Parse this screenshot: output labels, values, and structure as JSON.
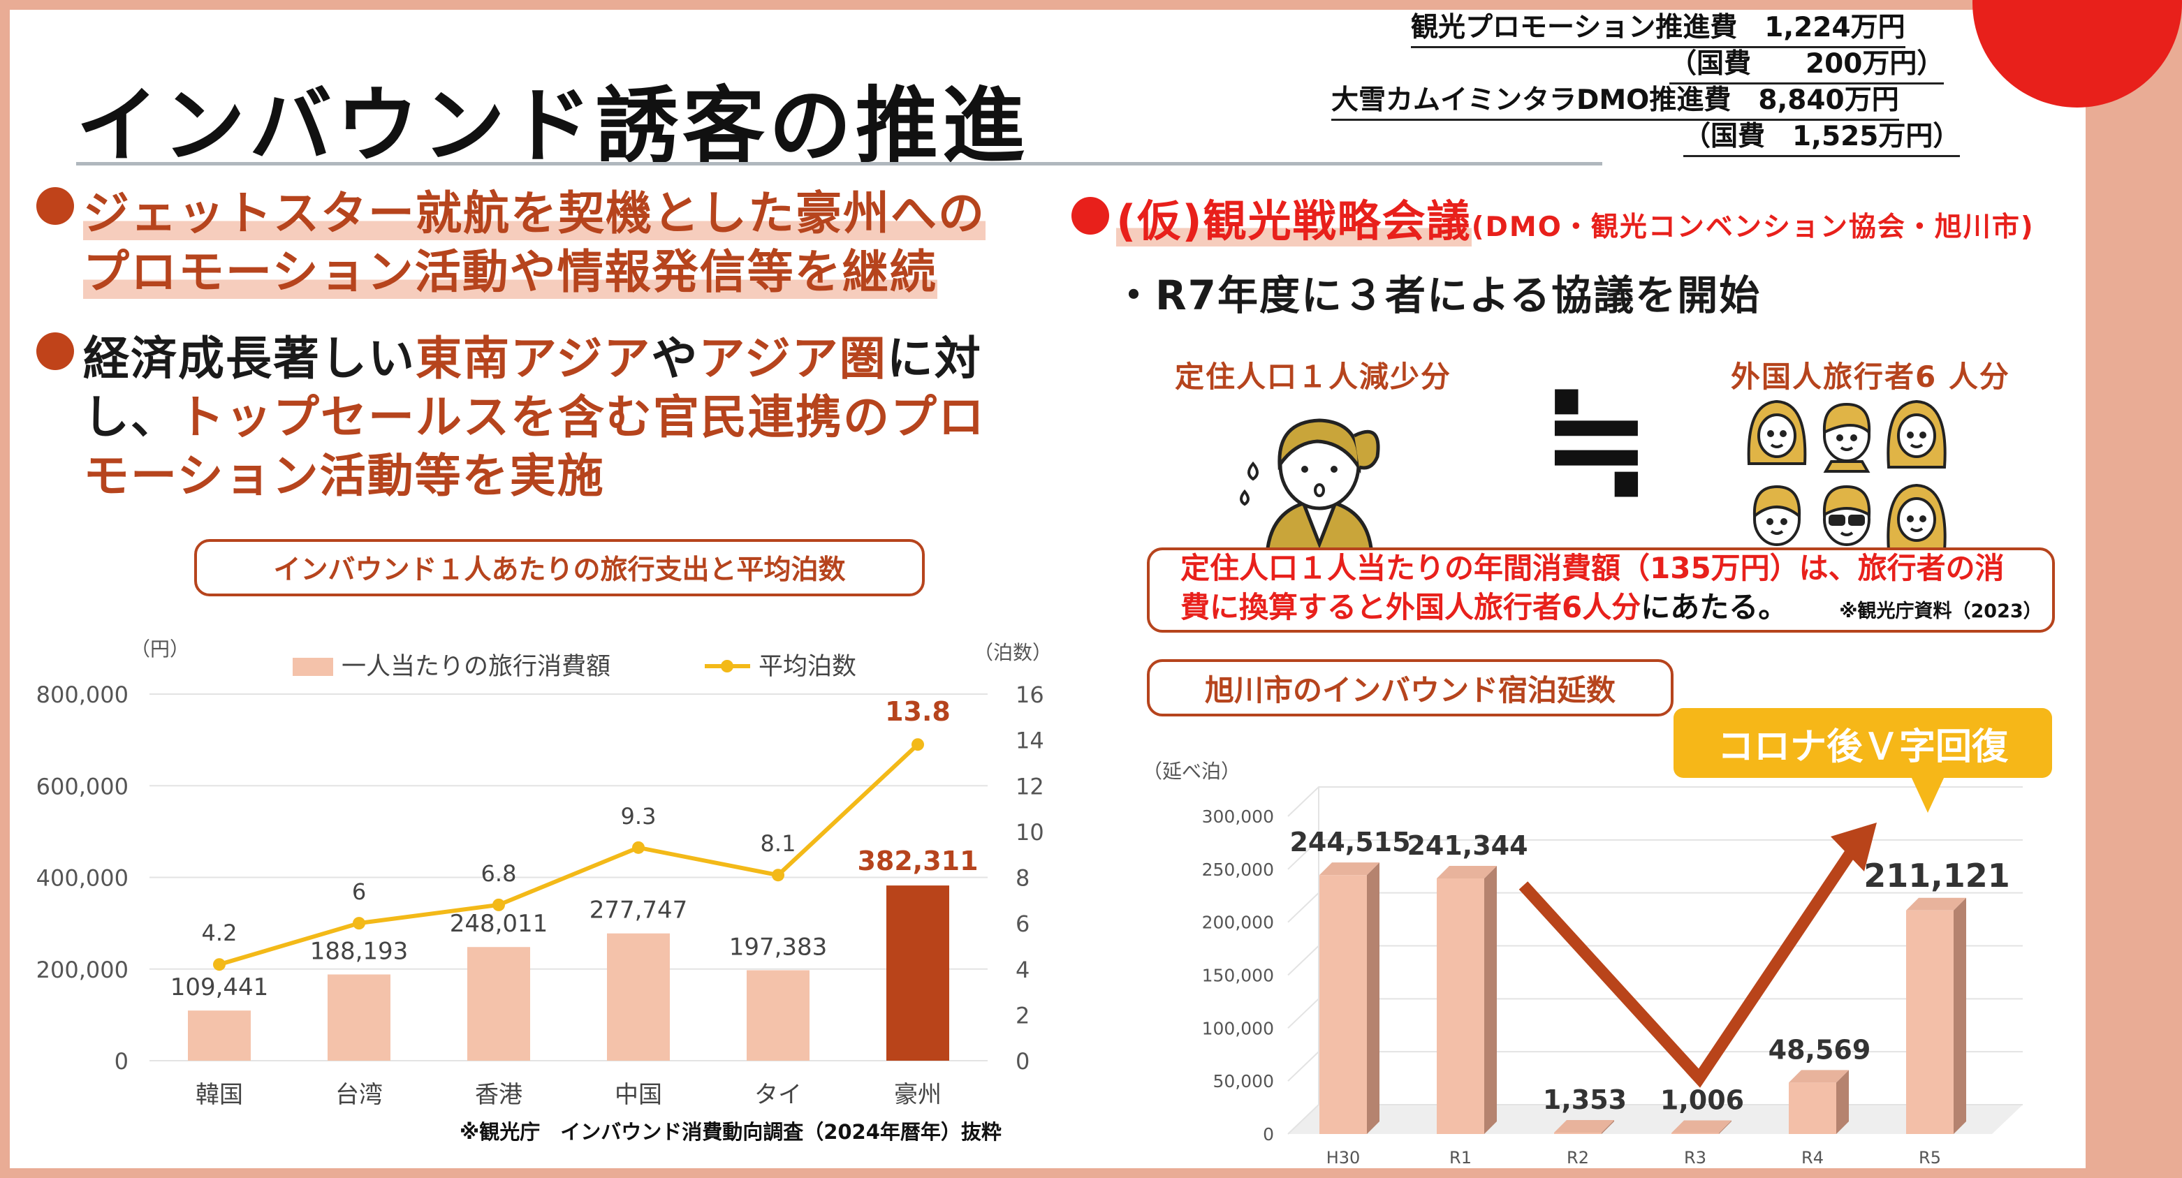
{
  "title": "インバウンド誘客の推進",
  "budget": {
    "line1": "観光プロモーション推進費　1,224万円",
    "line2": "（国費　　200万円）",
    "line3": "大雪カムイミンタラDMO推進費　8,840万円",
    "line4": "（国費　1,525万円）"
  },
  "left_bullets": {
    "b1_l1": "ジェットスター就航を契機とした豪州への",
    "b1_l2": "プロモーション活動や情報発信等を継続",
    "b2_l1_a": "経済成長著しい",
    "b2_l1_b": "東南アジア",
    "b2_l1_c": "や",
    "b2_l1_d": "アジア圏",
    "b2_l1_e": "に対",
    "b2_l2_a": "し、",
    "b2_l2_b": "トップセールスを含む官民連携のプロ",
    "b2_l3": "モーション活動等を実施"
  },
  "right_top": {
    "heading": "(仮)観光戦略会議",
    "heading_sub": "(DMO・観光コンベンション協会・旭川市)",
    "item": "・R7年度に３者による協議を開始",
    "left_label": "定住人口１人減少分",
    "approx": "≒",
    "right_label": "外国人旅行者6 人分",
    "box_l1": "定住人口１人当たりの年間消費額（135万円）は、旅行者の消",
    "box_l2_a": "費に換算すると外国人旅行者6人分",
    "box_l2_b": "にあたる。",
    "box_note": "※観光庁資料（2023）"
  },
  "chart1_box": "インバウンド１人あたりの旅行支出と平均泊数",
  "chart1_source": "※観光庁　インバウンド消費動向調査（2024年暦年）抜粋",
  "chart2_box": "旭川市のインバウンド宿泊延数",
  "callout": "コロナ後Ｖ字回復",
  "colors": {
    "accent": "#b6441d",
    "red": "#e8201b",
    "bar_light": "#f4c2aa",
    "bar_dark": "#b9441a",
    "line": "#f3b918",
    "callout": "#f6b718",
    "frame": "#e9ac95"
  },
  "chart_data": [
    {
      "type": "bar",
      "categories": [
        "韓国",
        "台湾",
        "香港",
        "中国",
        "タイ",
        "豪州"
      ],
      "series": [
        {
          "name": "一人当たりの旅行消費額",
          "type": "bar",
          "axis": "left",
          "values": [
            109441,
            188193,
            248011,
            277747,
            197383,
            382311
          ],
          "labels": [
            "109,441",
            "188,193",
            "248,011",
            "277,747",
            "197,383",
            "382,311"
          ]
        },
        {
          "name": "平均泊数",
          "type": "line",
          "axis": "right",
          "values": [
            4.2,
            6,
            6.8,
            9.3,
            8.1,
            13.8
          ],
          "labels": [
            "4.2",
            "6",
            "6.8",
            "9.3",
            "8.1",
            "13.8"
          ]
        }
      ],
      "ylabel": "（円）",
      "y2label": "（泊数）",
      "ylim": [
        0,
        800000
      ],
      "y2lim": [
        0,
        16
      ],
      "yticks": [
        "800,000",
        "600,000",
        "400,000",
        "200,000",
        "0"
      ],
      "y2ticks": [
        "16",
        "14",
        "12",
        "10",
        "8",
        "6",
        "4",
        "2",
        "0"
      ],
      "legend": "top",
      "grid": true
    },
    {
      "type": "bar",
      "categories": [
        "H30",
        "R1",
        "R2",
        "R3",
        "R4",
        "R5"
      ],
      "series": [
        {
          "values": [
            244515,
            241344,
            1353,
            1006,
            48569,
            211121
          ],
          "labels": [
            "244,515",
            "241,344",
            "1,353",
            "1,006",
            "48,569",
            "211,121"
          ]
        }
      ],
      "ylabel": "（延べ泊）",
      "ylim": [
        0,
        300000
      ],
      "yticks": [
        "300,000",
        "250,000",
        "200,000",
        "150,000",
        "100,000",
        "50,000",
        "0"
      ],
      "style": "3d",
      "grid": true
    }
  ]
}
